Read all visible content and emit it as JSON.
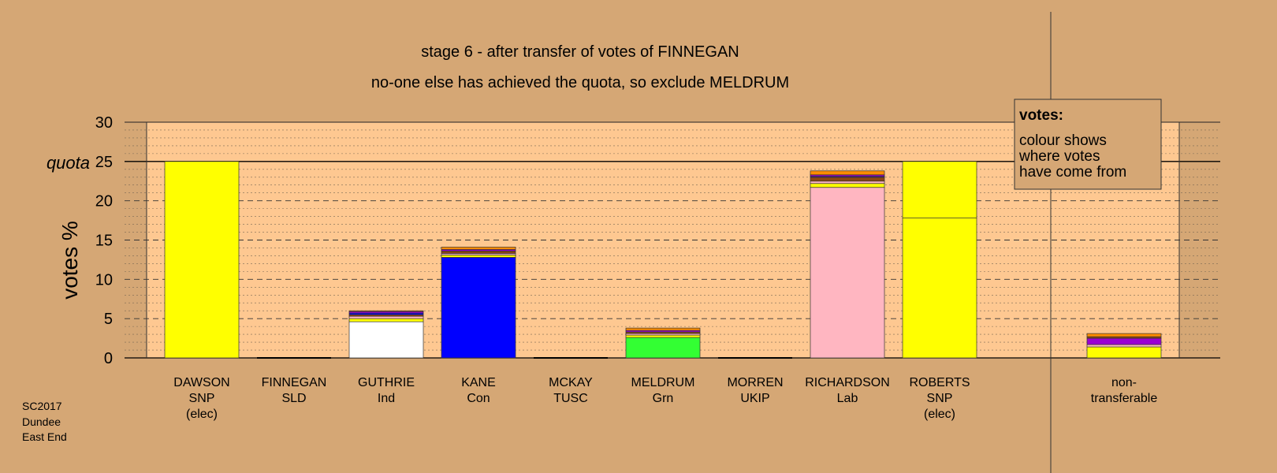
{
  "chart_data": {
    "type": "bar",
    "stacked": true,
    "title": "stage 6 - after transfer of votes of FINNEGAN",
    "subtitle": "no-one else has achieved the quota, so exclude MELDRUM",
    "ylabel": "votes %",
    "ylim": [
      0,
      30
    ],
    "yticks": [
      "0",
      "5",
      "10",
      "15",
      "20",
      "25",
      "30"
    ],
    "quota_label": "quota",
    "quota_value": 25,
    "grid": true,
    "legend": {
      "placement": "top-right",
      "heading": "votes:",
      "lines": [
        "colour shows",
        "where votes",
        "have come from"
      ]
    },
    "footer": [
      "SC2017",
      "Dundee",
      "East End"
    ],
    "candidates": [
      {
        "name": "DAWSON",
        "party": "SNP",
        "note": "(elec)",
        "segments": [
          {
            "value": 25.0,
            "color": "#ffff00"
          }
        ]
      },
      {
        "name": "FINNEGAN",
        "party": "SLD",
        "note": "",
        "segments": []
      },
      {
        "name": "GUTHRIE",
        "party": "Ind",
        "note": "",
        "segments": [
          {
            "value": 4.6,
            "color": "#ffffff"
          },
          {
            "value": 0.4,
            "color": "#ffff00"
          },
          {
            "value": 0.3,
            "color": "#ffb6c1"
          },
          {
            "value": 0.2,
            "color": "#8b4513"
          },
          {
            "value": 0.2,
            "color": "#0000ff"
          },
          {
            "value": 0.2,
            "color": "#9b00d3"
          },
          {
            "value": 0.1,
            "color": "#ff8c00"
          }
        ]
      },
      {
        "name": "KANE",
        "party": "Con",
        "note": "",
        "segments": [
          {
            "value": 12.8,
            "color": "#0000ff"
          },
          {
            "value": 0.3,
            "color": "#ffff00"
          },
          {
            "value": 0.2,
            "color": "#ffb6c1"
          },
          {
            "value": 0.3,
            "color": "#8b4513"
          },
          {
            "value": 0.2,
            "color": "#9b00d3"
          },
          {
            "value": 0.3,
            "color": "#ff8c00"
          }
        ]
      },
      {
        "name": "MCKAY",
        "party": "TUSC",
        "note": "",
        "segments": []
      },
      {
        "name": "MELDRUM",
        "party": "Grn",
        "note": "",
        "segments": [
          {
            "value": 2.6,
            "color": "#33ff33"
          },
          {
            "value": 0.3,
            "color": "#ffff00"
          },
          {
            "value": 0.2,
            "color": "#ffb6c1"
          },
          {
            "value": 0.2,
            "color": "#8b4513"
          },
          {
            "value": 0.2,
            "color": "#9b00d3"
          },
          {
            "value": 0.3,
            "color": "#ff8c00"
          }
        ]
      },
      {
        "name": "MORREN",
        "party": "UKIP",
        "note": "",
        "segments": []
      },
      {
        "name": "RICHARDSON",
        "party": "Lab",
        "note": "",
        "segments": [
          {
            "value": 21.7,
            "color": "#ffb6c1"
          },
          {
            "value": 0.5,
            "color": "#ffff00"
          },
          {
            "value": 0.3,
            "color": "#ffb6c1"
          },
          {
            "value": 0.5,
            "color": "#8b4513"
          },
          {
            "value": 0.1,
            "color": "#0000ff"
          },
          {
            "value": 0.2,
            "color": "#9b00d3"
          },
          {
            "value": 0.5,
            "color": "#ff8c00"
          }
        ]
      },
      {
        "name": "ROBERTS",
        "party": "SNP",
        "note": "(elec)",
        "segments": [
          {
            "value": 17.8,
            "color": "#ffff00"
          },
          {
            "value": 7.2,
            "color": "#ffff00"
          }
        ]
      },
      {
        "name": "non-",
        "party": "transferable",
        "note": "",
        "separate": true,
        "segments": [
          {
            "value": 1.4,
            "color": "#ffff00"
          },
          {
            "value": 0.3,
            "color": "#ffb6c1"
          },
          {
            "value": 0.8,
            "color": "#9b00d3"
          },
          {
            "value": 0.2,
            "color": "#8b4513"
          },
          {
            "value": 0.4,
            "color": "#ff8c00"
          }
        ]
      }
    ]
  }
}
